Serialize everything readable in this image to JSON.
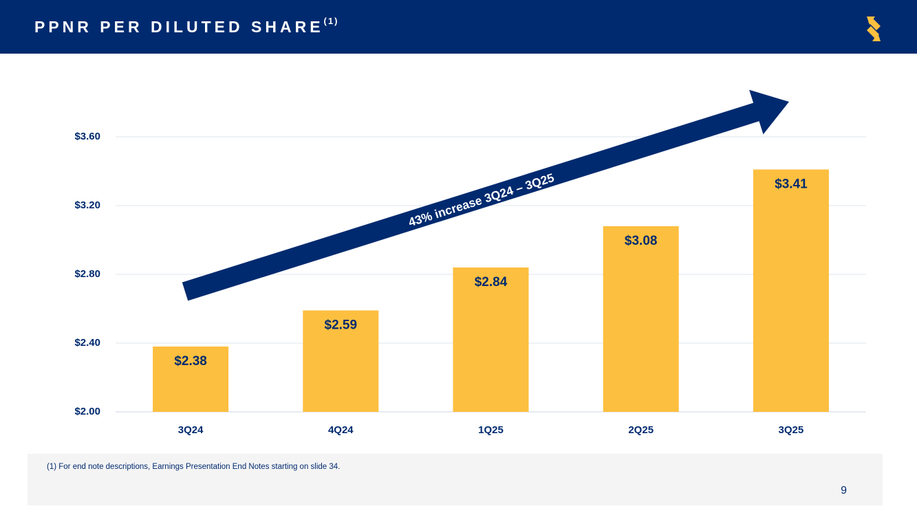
{
  "header": {
    "title": "PPNR PER DILUTED SHARE",
    "title_superscript": "(1)",
    "logo_icon": "brand-s-logo-icon"
  },
  "colors": {
    "navy": "#002a6f",
    "bar": "#fdbf3f",
    "gridline": "#dfe4ee",
    "footer_bg": "#f4f4f4"
  },
  "chart_data": {
    "type": "bar",
    "title": "PPNR PER DILUTED SHARE",
    "categories": [
      "3Q24",
      "4Q24",
      "1Q25",
      "2Q25",
      "3Q25"
    ],
    "values": [
      2.38,
      2.59,
      2.84,
      3.08,
      3.41
    ],
    "data_labels": [
      "$2.38",
      "$2.59",
      "$2.84",
      "$3.08",
      "$3.41"
    ],
    "y_ticks": [
      2.0,
      2.4,
      2.8,
      3.2,
      3.6
    ],
    "y_tick_labels": [
      "$2.00",
      "$2.40",
      "$2.80",
      "$3.20",
      "$3.60"
    ],
    "ylim": [
      2.0,
      3.6
    ],
    "xlabel": "",
    "ylabel": "",
    "grid": true,
    "annotation": "43% increase 3Q24 – 3Q25"
  },
  "footer": {
    "footnote": "(1)  For end note descriptions, Earnings Presentation End Notes starting on slide 34.",
    "page_number": "9"
  }
}
